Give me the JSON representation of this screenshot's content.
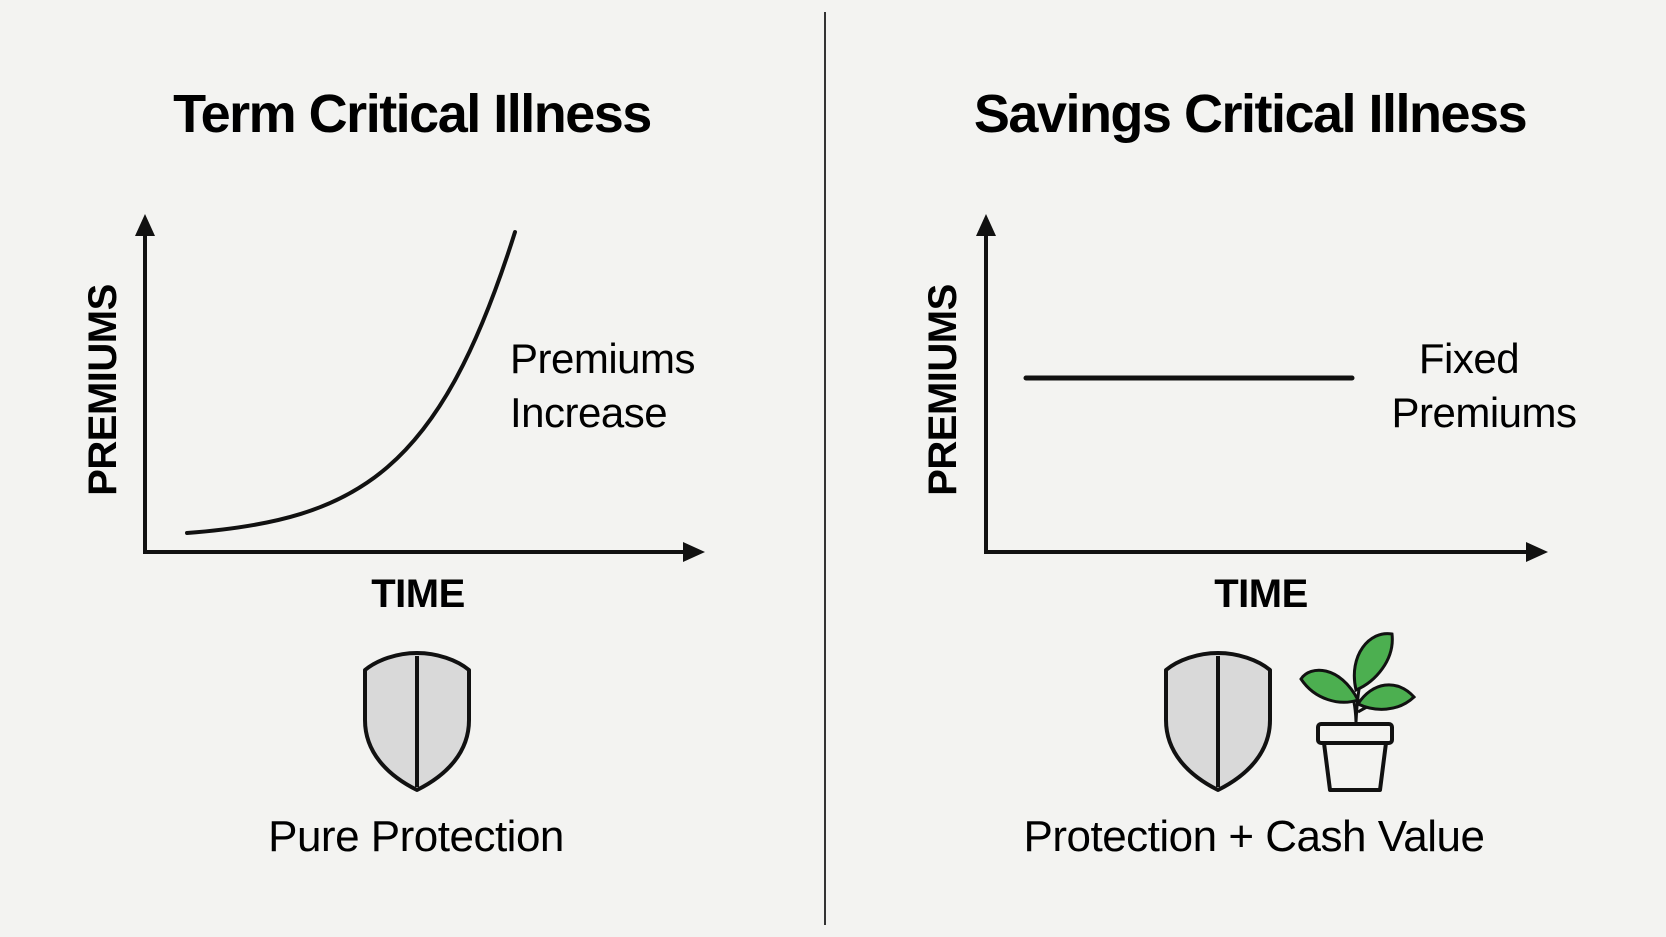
{
  "panels": {
    "term": {
      "title": "Term Critical Illness",
      "y_axis_label": "PREMIUMS",
      "x_axis_label": "TIME",
      "annotation_line1": "Premiums",
      "annotation_line2": "Increase",
      "caption": "Pure Protection",
      "icons": [
        "shield-icon"
      ],
      "curve_trend": "increasing"
    },
    "savings": {
      "title": "Savings Critical Illness",
      "y_axis_label": "PREMIUMS",
      "x_axis_label": "TIME",
      "annotation_line1": "Fixed",
      "annotation_line2": "Premiums",
      "caption": "Protection + Cash Value",
      "icons": [
        "shield-icon",
        "potted-plant-icon"
      ],
      "curve_trend": "flat"
    }
  },
  "colors": {
    "background": "#f3f3f1",
    "ink": "#111111",
    "divider": "#333333",
    "shield_fill": "#d9d9d9",
    "leaf_green": "#4caf50"
  }
}
